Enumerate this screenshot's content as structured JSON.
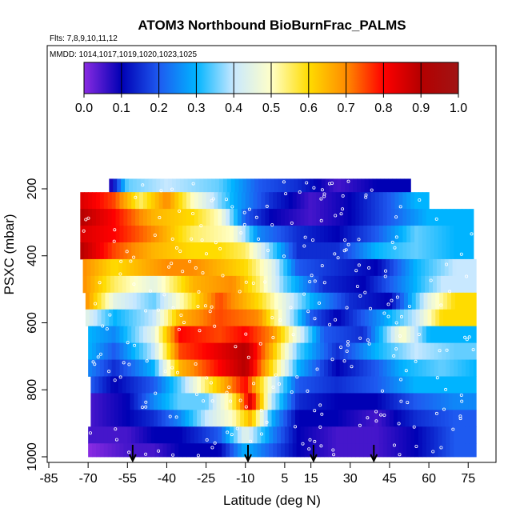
{
  "chart_data": {
    "type": "heatmap",
    "title": "ATOM3 Northbound BioBurnFrac_PALMS",
    "subtitle_flights": "Flts: 7,8,9,10,11,12",
    "subtitle_dates": "MMDD: 1014,1017,1019,1020,1023,1025",
    "xlabel": "Latitude (deg N)",
    "ylabel": "PSXC (mbar)",
    "xlim": [
      -85,
      85
    ],
    "ylim": [
      1000,
      100
    ],
    "x_ticks": [
      -85,
      -70,
      -55,
      -40,
      -25,
      -10,
      5,
      15,
      30,
      45,
      60,
      75
    ],
    "y_ticks": [
      200,
      400,
      600,
      800,
      1000
    ],
    "colorbar": {
      "ticks": [
        0.0,
        0.1,
        0.2,
        0.3,
        0.4,
        0.5,
        0.6,
        0.7,
        0.8,
        0.9,
        1.0
      ],
      "tick_labels": [
        "0.0",
        "0.1",
        "0.2",
        "0.3",
        "0.4",
        "0.5",
        "0.6",
        "0.7",
        "0.8",
        "0.9",
        "1.0"
      ],
      "colors": [
        "#8a2be2",
        "#0000b4",
        "#1e5af0",
        "#00b4ff",
        "#c8e8ff",
        "#ffffc8",
        "#ffdc00",
        "#ff8c00",
        "#ff0000",
        "#b40000",
        "#a01414"
      ]
    },
    "sounding_arrow_latitudes": [
      -53,
      -9,
      16,
      39
    ],
    "bands": [
      {
        "pressure_top": 170,
        "pressure_bottom": 210,
        "lat_start": -62,
        "lat_end": 53,
        "knots": [
          [
            -62,
            0.05
          ],
          [
            -55,
            0.35
          ],
          [
            -40,
            0.4
          ],
          [
            -20,
            0.35
          ],
          [
            -5,
            0.2
          ],
          [
            10,
            0.15
          ],
          [
            25,
            0.05
          ],
          [
            40,
            0.1
          ],
          [
            53,
            0.1
          ]
        ]
      },
      {
        "pressure_top": 210,
        "pressure_bottom": 260,
        "lat_start": -73,
        "lat_end": 60,
        "knots": [
          [
            -73,
            0.85
          ],
          [
            -60,
            0.75
          ],
          [
            -50,
            0.55
          ],
          [
            -40,
            0.7
          ],
          [
            -30,
            0.5
          ],
          [
            -15,
            0.3
          ],
          [
            0,
            0.15
          ],
          [
            15,
            0.05
          ],
          [
            30,
            0.1
          ],
          [
            45,
            0.2
          ],
          [
            55,
            0.3
          ],
          [
            60,
            0.3
          ]
        ]
      },
      {
        "pressure_top": 260,
        "pressure_bottom": 310,
        "lat_start": -73,
        "lat_end": 77,
        "knots": [
          [
            -73,
            0.9
          ],
          [
            -60,
            0.8
          ],
          [
            -45,
            0.65
          ],
          [
            -30,
            0.6
          ],
          [
            -20,
            0.5
          ],
          [
            -10,
            0.2
          ],
          [
            0,
            0.1
          ],
          [
            15,
            0.05
          ],
          [
            30,
            0.1
          ],
          [
            45,
            0.2
          ],
          [
            60,
            0.3
          ],
          [
            77,
            0.3
          ]
        ]
      },
      {
        "pressure_top": 310,
        "pressure_bottom": 360,
        "lat_start": -73,
        "lat_end": 77,
        "knots": [
          [
            -73,
            0.85
          ],
          [
            -60,
            0.8
          ],
          [
            -45,
            0.7
          ],
          [
            -30,
            0.55
          ],
          [
            -15,
            0.5
          ],
          [
            -5,
            0.25
          ],
          [
            10,
            0.15
          ],
          [
            25,
            0.1
          ],
          [
            40,
            0.2
          ],
          [
            55,
            0.35
          ],
          [
            70,
            0.3
          ],
          [
            77,
            0.3
          ]
        ]
      },
      {
        "pressure_top": 360,
        "pressure_bottom": 410,
        "lat_start": -73,
        "lat_end": 77,
        "knots": [
          [
            -73,
            0.9
          ],
          [
            -60,
            0.75
          ],
          [
            -45,
            0.65
          ],
          [
            -30,
            0.6
          ],
          [
            -20,
            0.6
          ],
          [
            -10,
            0.55
          ],
          [
            0,
            0.35
          ],
          [
            10,
            0.15
          ],
          [
            25,
            0.15
          ],
          [
            40,
            0.3
          ],
          [
            55,
            0.35
          ],
          [
            70,
            0.3
          ],
          [
            77,
            0.3
          ]
        ]
      },
      {
        "pressure_top": 410,
        "pressure_bottom": 460,
        "lat_start": -72,
        "lat_end": 78,
        "knots": [
          [
            -72,
            0.7
          ],
          [
            -60,
            0.6
          ],
          [
            -50,
            0.65
          ],
          [
            -40,
            0.7
          ],
          [
            -30,
            0.7
          ],
          [
            -20,
            0.65
          ],
          [
            -10,
            0.6
          ],
          [
            0,
            0.45
          ],
          [
            10,
            0.2
          ],
          [
            25,
            0.15
          ],
          [
            40,
            0.1
          ],
          [
            55,
            0.3
          ],
          [
            70,
            0.4
          ],
          [
            78,
            0.4
          ]
        ]
      },
      {
        "pressure_top": 460,
        "pressure_bottom": 510,
        "lat_start": -72,
        "lat_end": 78,
        "knots": [
          [
            -72,
            0.7
          ],
          [
            -60,
            0.55
          ],
          [
            -45,
            0.45
          ],
          [
            -30,
            0.65
          ],
          [
            -15,
            0.7
          ],
          [
            -5,
            0.55
          ],
          [
            5,
            0.35
          ],
          [
            20,
            0.15
          ],
          [
            35,
            0.1
          ],
          [
            50,
            0.25
          ],
          [
            65,
            0.4
          ],
          [
            78,
            0.4
          ]
        ]
      },
      {
        "pressure_top": 510,
        "pressure_bottom": 560,
        "lat_start": -71,
        "lat_end": 78,
        "knots": [
          [
            -71,
            0.7
          ],
          [
            -60,
            0.45
          ],
          [
            -45,
            0.35
          ],
          [
            -35,
            0.5
          ],
          [
            -20,
            0.75
          ],
          [
            -5,
            0.6
          ],
          [
            5,
            0.45
          ],
          [
            15,
            0.3
          ],
          [
            30,
            0.15
          ],
          [
            45,
            0.1
          ],
          [
            60,
            0.45
          ],
          [
            70,
            0.6
          ],
          [
            78,
            0.6
          ]
        ]
      },
      {
        "pressure_top": 560,
        "pressure_bottom": 610,
        "lat_start": -71,
        "lat_end": 78,
        "knots": [
          [
            -71,
            0.45
          ],
          [
            -60,
            0.3
          ],
          [
            -45,
            0.4
          ],
          [
            -35,
            0.65
          ],
          [
            -20,
            0.75
          ],
          [
            -5,
            0.7
          ],
          [
            5,
            0.45
          ],
          [
            15,
            0.2
          ],
          [
            25,
            0.1
          ],
          [
            40,
            0.25
          ],
          [
            55,
            0.4
          ],
          [
            65,
            0.6
          ],
          [
            78,
            0.6
          ]
        ]
      },
      {
        "pressure_top": 610,
        "pressure_bottom": 660,
        "lat_start": -70,
        "lat_end": 78,
        "knots": [
          [
            -70,
            0.3
          ],
          [
            -60,
            0.25
          ],
          [
            -45,
            0.45
          ],
          [
            -35,
            0.8
          ],
          [
            -20,
            0.75
          ],
          [
            -10,
            0.8
          ],
          [
            0,
            0.7
          ],
          [
            10,
            0.45
          ],
          [
            20,
            0.2
          ],
          [
            35,
            0.15
          ],
          [
            50,
            0.5
          ],
          [
            60,
            0.3
          ],
          [
            78,
            0.3
          ]
        ]
      },
      {
        "pressure_top": 660,
        "pressure_bottom": 710,
        "lat_start": -70,
        "lat_end": 78,
        "knots": [
          [
            -70,
            0.3
          ],
          [
            -60,
            0.2
          ],
          [
            -45,
            0.4
          ],
          [
            -35,
            0.75
          ],
          [
            -25,
            0.8
          ],
          [
            -10,
            0.9
          ],
          [
            0,
            0.65
          ],
          [
            10,
            0.35
          ],
          [
            25,
            0.15
          ],
          [
            40,
            0.3
          ],
          [
            55,
            0.4
          ],
          [
            70,
            0.35
          ],
          [
            78,
            0.35
          ]
        ]
      },
      {
        "pressure_top": 710,
        "pressure_bottom": 760,
        "lat_start": -70,
        "lat_end": 78,
        "knots": [
          [
            -70,
            0.25
          ],
          [
            -60,
            0.15
          ],
          [
            -45,
            0.3
          ],
          [
            -35,
            0.65
          ],
          [
            -25,
            0.75
          ],
          [
            -10,
            0.9
          ],
          [
            0,
            0.6
          ],
          [
            10,
            0.3
          ],
          [
            25,
            0.1
          ],
          [
            40,
            0.2
          ],
          [
            50,
            0.3
          ],
          [
            65,
            0.35
          ],
          [
            78,
            0.3
          ]
        ]
      },
      {
        "pressure_top": 760,
        "pressure_bottom": 810,
        "lat_start": -69,
        "lat_end": 78,
        "knots": [
          [
            -69,
            0.2
          ],
          [
            -60,
            0.1
          ],
          [
            -45,
            0.2
          ],
          [
            -35,
            0.35
          ],
          [
            -25,
            0.55
          ],
          [
            -10,
            0.8
          ],
          [
            0,
            0.45
          ],
          [
            10,
            0.2
          ],
          [
            25,
            0.15
          ],
          [
            40,
            0.2
          ],
          [
            55,
            0.3
          ],
          [
            70,
            0.3
          ],
          [
            78,
            0.3
          ]
        ]
      },
      {
        "pressure_top": 810,
        "pressure_bottom": 860,
        "lat_start": -69,
        "lat_end": 78,
        "knots": [
          [
            -69,
            0.05
          ],
          [
            -55,
            0.1
          ],
          [
            -45,
            0.25
          ],
          [
            -35,
            0.35
          ],
          [
            -25,
            0.35
          ],
          [
            -15,
            0.55
          ],
          [
            -8,
            0.85
          ],
          [
            0,
            0.4
          ],
          [
            10,
            0.15
          ],
          [
            25,
            0.1
          ],
          [
            40,
            0.1
          ],
          [
            55,
            0.2
          ],
          [
            70,
            0.25
          ],
          [
            78,
            0.25
          ]
        ]
      },
      {
        "pressure_top": 860,
        "pressure_bottom": 910,
        "lat_start": -69,
        "lat_end": 78,
        "knots": [
          [
            -69,
            0.05
          ],
          [
            -55,
            0.1
          ],
          [
            -45,
            0.15
          ],
          [
            -35,
            0.25
          ],
          [
            -25,
            0.4
          ],
          [
            -15,
            0.5
          ],
          [
            -8,
            0.65
          ],
          [
            0,
            0.3
          ],
          [
            10,
            0.1
          ],
          [
            25,
            0.1
          ],
          [
            40,
            0.05
          ],
          [
            55,
            0.15
          ],
          [
            70,
            0.2
          ],
          [
            78,
            0.2
          ]
        ]
      },
      {
        "pressure_top": 910,
        "pressure_bottom": 960,
        "lat_start": -70,
        "lat_end": 78,
        "knots": [
          [
            -70,
            0.05
          ],
          [
            -55,
            0.05
          ],
          [
            -45,
            0.1
          ],
          [
            -35,
            0.1
          ],
          [
            -20,
            0.2
          ],
          [
            -10,
            0.45
          ],
          [
            0,
            0.25
          ],
          [
            10,
            0.1
          ],
          [
            25,
            0.05
          ],
          [
            40,
            0.05
          ],
          [
            55,
            0.1
          ],
          [
            70,
            0.2
          ],
          [
            78,
            0.2
          ]
        ]
      },
      {
        "pressure_top": 960,
        "pressure_bottom": 1000,
        "lat_start": -70,
        "lat_end": 78,
        "knots": [
          [
            -70,
            0.0
          ],
          [
            -55,
            0.05
          ],
          [
            -45,
            0.05
          ],
          [
            -35,
            0.1
          ],
          [
            -20,
            0.1
          ],
          [
            -10,
            0.3
          ],
          [
            0,
            0.2
          ],
          [
            10,
            0.1
          ],
          [
            25,
            0.05
          ],
          [
            40,
            0.05
          ],
          [
            55,
            0.1
          ],
          [
            70,
            0.2
          ],
          [
            78,
            0.2
          ]
        ]
      }
    ]
  }
}
